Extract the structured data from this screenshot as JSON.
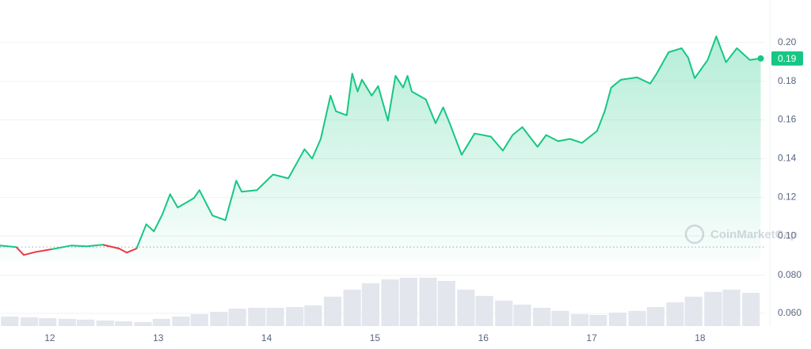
{
  "chart_data": [
    {
      "type": "line",
      "x": [
        11.54,
        11.69,
        11.76,
        11.87,
        12.01,
        12.2,
        12.34,
        12.49,
        12.64,
        12.71,
        12.8,
        12.89,
        12.96,
        13.04,
        13.11,
        13.18,
        13.33,
        13.38,
        13.5,
        13.62,
        13.72,
        13.77,
        13.91,
        14.06,
        14.2,
        14.35,
        14.42,
        14.5,
        14.59,
        14.64,
        14.74,
        14.79,
        14.84,
        14.88,
        14.97,
        15.03,
        15.12,
        15.19,
        15.26,
        15.3,
        15.34,
        15.47,
        15.56,
        15.63,
        15.69,
        15.8,
        15.92,
        16.07,
        16.18,
        16.27,
        16.36,
        16.5,
        16.58,
        16.69,
        16.8,
        16.91,
        17.05,
        17.12,
        17.18,
        17.27,
        17.42,
        17.54,
        17.6,
        17.71,
        17.83,
        17.89,
        17.95,
        18.07,
        18.15,
        18.24,
        18.34,
        18.46,
        18.56
      ],
      "values": [
        0.0951,
        0.0943,
        0.0902,
        0.0918,
        0.0931,
        0.0951,
        0.0947,
        0.0955,
        0.0935,
        0.0914,
        0.0935,
        0.1061,
        0.1024,
        0.1114,
        0.1216,
        0.1147,
        0.1196,
        0.1237,
        0.1106,
        0.1082,
        0.1286,
        0.1229,
        0.1237,
        0.1318,
        0.1298,
        0.1449,
        0.14,
        0.1502,
        0.1726,
        0.1645,
        0.1624,
        0.184,
        0.1747,
        0.1808,
        0.1726,
        0.1775,
        0.1596,
        0.1828,
        0.1767,
        0.1828,
        0.1747,
        0.1706,
        0.1583,
        0.1665,
        0.1583,
        0.142,
        0.153,
        0.1514,
        0.1441,
        0.1522,
        0.1563,
        0.1461,
        0.1522,
        0.149,
        0.1502,
        0.1481,
        0.1543,
        0.1645,
        0.1767,
        0.1808,
        0.182,
        0.1788,
        0.184,
        0.195,
        0.1971,
        0.1922,
        0.1816,
        0.191,
        0.2032,
        0.1898,
        0.1971,
        0.191,
        0.1918
      ],
      "color": "#16c784",
      "negative_color": "#ea3943",
      "reference_line": 0.0943,
      "current_label": "0.19",
      "xlim": [
        11.54,
        18.6
      ],
      "xticks": [
        12,
        13,
        14,
        15,
        16,
        17,
        18
      ],
      "ylim": [
        0.087,
        0.222
      ],
      "yticks": [
        {
          "value": 0.1,
          "label": "0.10"
        },
        0.12,
        0.14,
        0.16,
        0.18,
        {
          "value": 0.2,
          "label": "0.20"
        }
      ],
      "grid": true,
      "watermark": "CoinMarketCap"
    },
    {
      "type": "bar",
      "x": [
        11.63,
        11.81,
        11.98,
        12.16,
        12.33,
        12.51,
        12.68,
        12.86,
        13.03,
        13.21,
        13.38,
        13.56,
        13.73,
        13.91,
        14.08,
        14.26,
        14.43,
        14.61,
        14.79,
        14.96,
        15.14,
        15.31,
        15.49,
        15.66,
        15.84,
        16.01,
        16.19,
        16.36,
        16.54,
        16.71,
        16.89,
        17.06,
        17.24,
        17.42,
        17.59,
        17.77,
        17.94,
        18.12,
        18.29,
        18.47
      ],
      "values": [
        0.0583,
        0.0579,
        0.0575,
        0.0571,
        0.0567,
        0.0562,
        0.0558,
        0.0554,
        0.0571,
        0.0583,
        0.0596,
        0.0608,
        0.0625,
        0.0629,
        0.0629,
        0.0633,
        0.0642,
        0.0688,
        0.0725,
        0.0758,
        0.0779,
        0.0788,
        0.0788,
        0.0771,
        0.0725,
        0.0692,
        0.0667,
        0.0646,
        0.0629,
        0.0613,
        0.0596,
        0.0592,
        0.0604,
        0.0613,
        0.0633,
        0.0658,
        0.0688,
        0.0713,
        0.0725,
        0.0708
      ],
      "color": "#e3e6ec",
      "xlim": [
        11.54,
        18.6
      ],
      "ylim": [
        0.0533,
        0.085
      ],
      "yticks": [
        {
          "value": 0.06,
          "label": "0.060"
        },
        {
          "value": 0.08,
          "label": "0.080"
        }
      ],
      "grid": true
    }
  ]
}
